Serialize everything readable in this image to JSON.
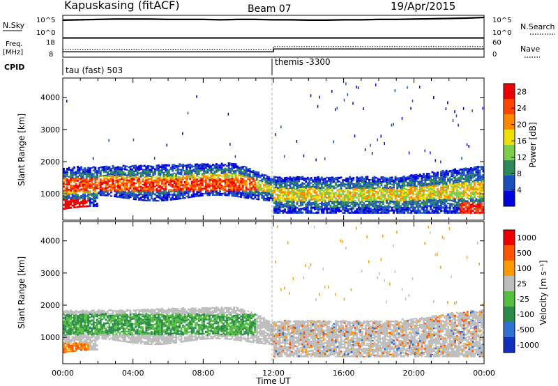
{
  "header": {
    "station": "Kapuskasing (fitACF)",
    "beam": "Beam 07",
    "date": "19/Apr/2015"
  },
  "labels": {
    "nsky": "N.Sky",
    "nsearch": "N.Search",
    "freq_line1": "Freq.",
    "freq_line2": "[MHz]",
    "nave": "Nave",
    "cpid": "CPID",
    "cpid_left": "tau (fast) 503",
    "cpid_right": "themis -3300",
    "ylabel_top": "Slant Range [km]",
    "ylabel_bottom": "Slant Range [km]",
    "xlabel": "Time UT",
    "power_label": "Power [dB]",
    "velocity_label": "Velocity  [m s⁻¹]"
  },
  "colors": {
    "power_scale": [
      "#0000dd",
      "#1b4fbf",
      "#2e8b57",
      "#7ccd4c",
      "#f0e000",
      "#ff8800",
      "#ff4400",
      "#ee0000"
    ],
    "velocity_scale": [
      "#1030c0",
      "#3070d0",
      "#2a8b4a",
      "#55c040",
      "#bdbdbd",
      "#ff9900",
      "#ff5500",
      "#ee0000"
    ]
  },
  "chart_data": [
    {
      "type": "line",
      "name": "noise",
      "x_ticks": [
        "00:00",
        "04:00",
        "08:00",
        "12:00",
        "16:00",
        "20:00",
        "00:00"
      ],
      "xlim_hours": [
        0,
        24
      ],
      "left_axis": {
        "label": "N.Sky",
        "ticks": [
          "10^5",
          "10^0"
        ]
      },
      "right_axis": {
        "label": "N.Search",
        "ticks": [
          "10^5",
          "10^0"
        ]
      },
      "nsky_log10": [
        4.4,
        4.5,
        4.6,
        4.7,
        4.7,
        4.7,
        4.6,
        4.6,
        4.6,
        4.5,
        4.6,
        4.6,
        4.5,
        4.5,
        4.4,
        4.4,
        4.5,
        4.5,
        4.6,
        4.6,
        4.7,
        4.8,
        4.9,
        5.0,
        5.2
      ]
    },
    {
      "type": "line",
      "name": "frequency",
      "xlim_hours": [
        0,
        24
      ],
      "left_axis": {
        "label": "Freq. [MHz]",
        "ticks": [
          18,
          8
        ],
        "ylim": [
          8,
          18
        ]
      },
      "right_axis": {
        "label": "Nave",
        "ticks": [
          60,
          0
        ],
        "ylim": [
          0,
          60
        ]
      },
      "freq_x": [
        0,
        12,
        12,
        24
      ],
      "freq_y": [
        10.2,
        10.2,
        12.2,
        12.2
      ],
      "nave_x": [
        0,
        12,
        12,
        24
      ],
      "nave_y": [
        22,
        22,
        35,
        35
      ]
    },
    {
      "type": "table",
      "name": "cpid",
      "segments": [
        {
          "label": "tau (fast) 503",
          "start_hour": 0,
          "end_hour": 12
        },
        {
          "label": "themis -3300",
          "start_hour": 12,
          "end_hour": 24
        }
      ]
    },
    {
      "type": "heatmap",
      "name": "power",
      "ylabel": "Slant Range [km]",
      "ylim": [
        180,
        4600
      ],
      "y_ticks": [
        1000,
        2000,
        3000,
        4000
      ],
      "x_ticks": [
        "00:00",
        "04:00",
        "08:00",
        "12:00",
        "16:00",
        "20:00",
        "00:00"
      ],
      "colorbar": {
        "label": "Power [dB]",
        "ticks": [
          4,
          8,
          12,
          16,
          20,
          24,
          28
        ],
        "range": [
          0,
          30
        ]
      }
    },
    {
      "type": "heatmap",
      "name": "velocity",
      "ylabel": "Slant Range [km]",
      "ylim": [
        180,
        4600
      ],
      "y_ticks": [
        1000,
        2000,
        3000,
        4000
      ],
      "x_ticks": [
        "00:00",
        "04:00",
        "08:00",
        "12:00",
        "16:00",
        "20:00",
        "00:00"
      ],
      "xlabel": "Time UT",
      "colorbar": {
        "label": "Velocity [m s⁻¹]",
        "ticks": [
          1000,
          500,
          100,
          25,
          -25,
          -100,
          -500,
          -1000
        ]
      }
    }
  ]
}
